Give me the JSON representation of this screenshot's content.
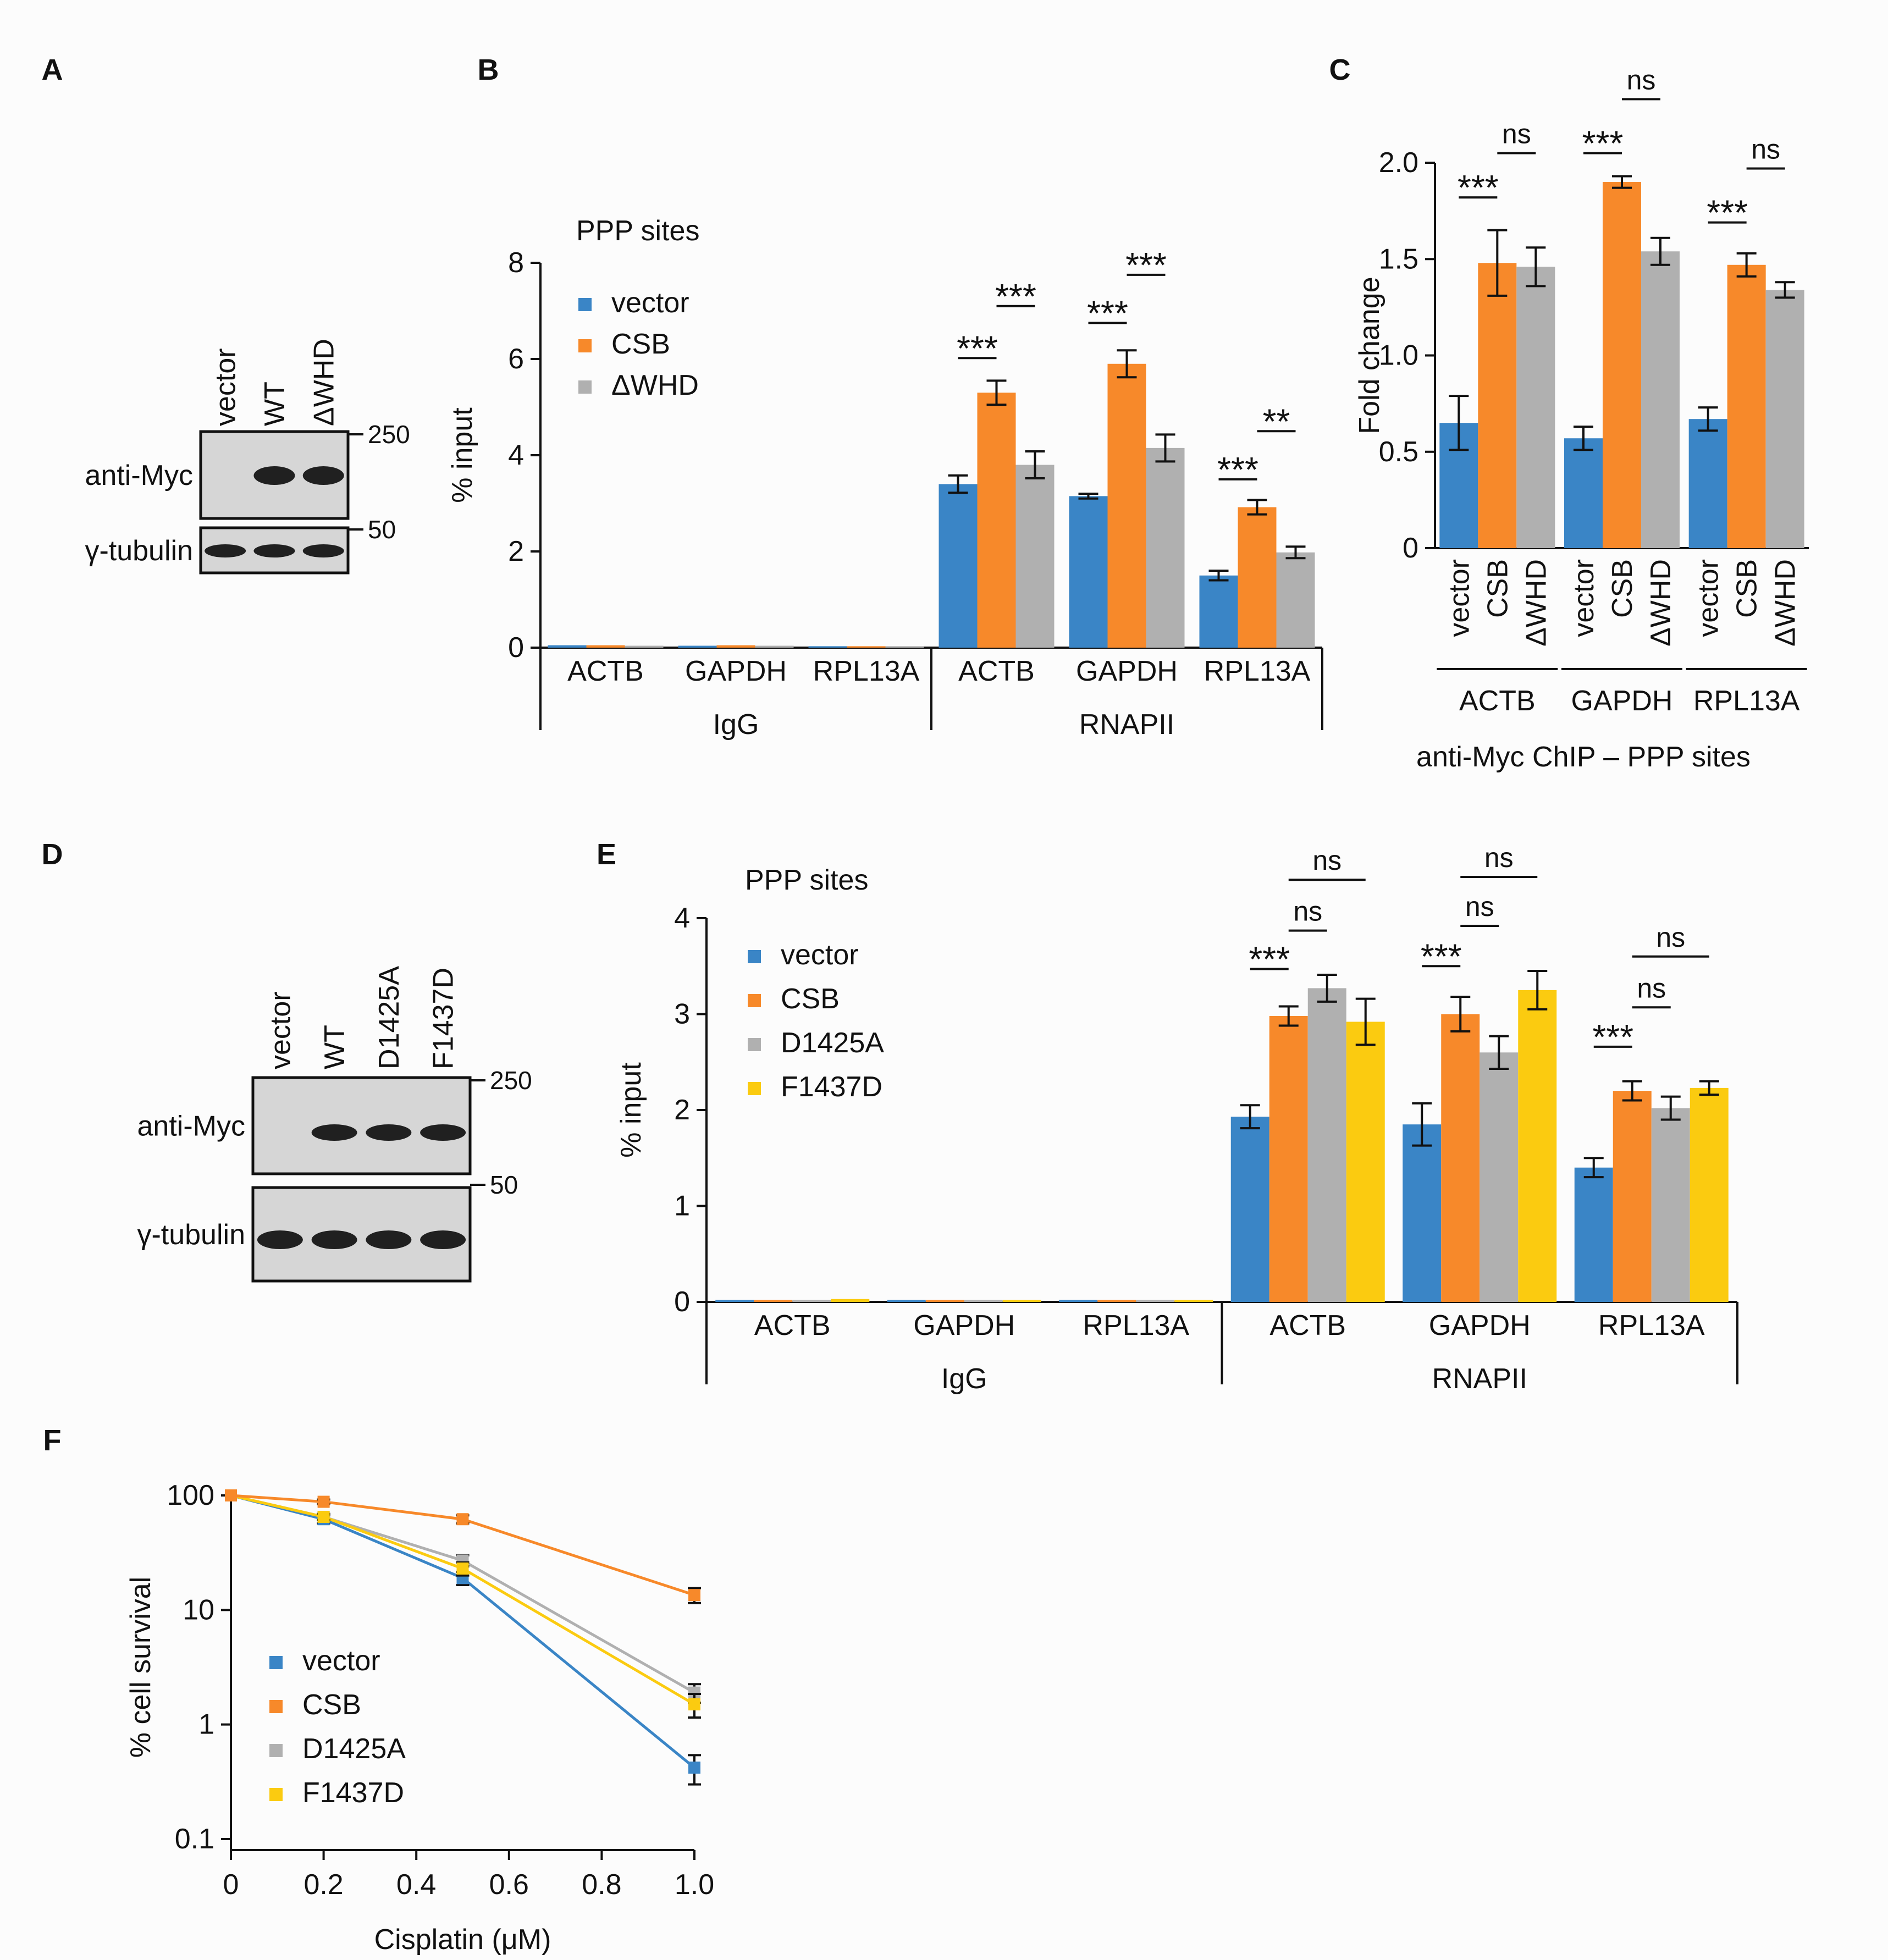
{
  "colors": {
    "vector": "#3a85c6",
    "CSB": "#f7892a",
    "dWHD": "#b0b0b0",
    "D1425A": "#b0b0b0",
    "F1437D": "#fbcb10",
    "blot_bg": "#d6d6d6",
    "band": "#202020"
  },
  "panels": {
    "A": {
      "letter": "A",
      "lanes": [
        "vector",
        "WT",
        "ΔWHD"
      ],
      "rows": [
        "anti-Myc",
        "γ-tubulin"
      ],
      "markers": [
        "250",
        "50"
      ]
    },
    "D": {
      "letter": "D",
      "lanes": [
        "vector",
        "WT",
        "D1425A",
        "F1437D"
      ],
      "rows": [
        "anti-Myc",
        "γ-tubulin"
      ],
      "markers": [
        "250",
        "50"
      ]
    }
  },
  "chart_data": [
    {
      "id": "B",
      "letter": "B",
      "type": "bar",
      "title": "PPP sites",
      "ylabel": "% input",
      "xlabel": "",
      "ylim": [
        0,
        8
      ],
      "yticks": [
        "0",
        "2",
        "4",
        "6",
        "8"
      ],
      "ytick_values": [
        0,
        2,
        4,
        6,
        8
      ],
      "groups": [
        {
          "label": "IgG",
          "categories": [
            "ACTB",
            "GAPDH",
            "RPL13A"
          ]
        },
        {
          "label": "RNAPII",
          "categories": [
            "ACTB",
            "GAPDH",
            "RPL13A"
          ]
        }
      ],
      "series": [
        {
          "name": "vector",
          "values": [
            0.05,
            0.04,
            0.03,
            3.4,
            3.15,
            1.5
          ],
          "errors": [
            0.02,
            0.02,
            0.02,
            0.18,
            0.05,
            0.1
          ]
        },
        {
          "name": "CSB",
          "values": [
            0.05,
            0.05,
            0.03,
            5.3,
            5.9,
            2.92
          ],
          "errors": [
            0.02,
            0.02,
            0.02,
            0.25,
            0.28,
            0.15
          ]
        },
        {
          "name": "ΔWHD",
          "values": [
            0.04,
            0.04,
            0.03,
            3.8,
            4.15,
            1.98
          ],
          "errors": [
            0.02,
            0.02,
            0.02,
            0.28,
            0.28,
            0.12
          ]
        }
      ],
      "annotations": [
        {
          "text": "***",
          "cat": 3,
          "from": 0,
          "to": 1,
          "y": 6.02
        },
        {
          "text": "***",
          "cat": 3,
          "from": 1,
          "to": 2,
          "y": 7.1
        },
        {
          "text": "***",
          "cat": 4,
          "from": 0,
          "to": 1,
          "y": 6.75
        },
        {
          "text": "***",
          "cat": 4,
          "from": 1,
          "to": 2,
          "y": 7.75
        },
        {
          "text": "***",
          "cat": 5,
          "from": 0,
          "to": 1,
          "y": 3.5
        },
        {
          "text": "**",
          "cat": 5,
          "from": 1,
          "to": 2,
          "y": 4.5
        }
      ],
      "legend": "top-left"
    },
    {
      "id": "C",
      "letter": "C",
      "type": "bar",
      "title": "",
      "ylabel": "Fold change",
      "xlabel": "anti-Myc ChIP – PPP sites",
      "ylim": [
        0,
        2.0
      ],
      "yticks": [
        "0",
        "0.5",
        "1.0",
        "1.5",
        "2.0"
      ],
      "ytick_values": [
        0,
        0.5,
        1.0,
        1.5,
        2.0
      ],
      "categories": [
        "ACTB",
        "GAPDH",
        "RPL13A"
      ],
      "bar_labels": [
        "vector",
        "CSB",
        "ΔWHD"
      ],
      "series": [
        {
          "name": "vector",
          "values": [
            0.65,
            0.57,
            0.67
          ],
          "errors": [
            0.14,
            0.06,
            0.06
          ]
        },
        {
          "name": "CSB",
          "values": [
            1.48,
            1.9,
            1.47
          ],
          "errors": [
            0.17,
            0.03,
            0.06
          ]
        },
        {
          "name": "ΔWHD",
          "values": [
            1.46,
            1.54,
            1.34
          ],
          "errors": [
            0.1,
            0.07,
            0.04
          ]
        }
      ],
      "annotations": [
        {
          "text": "***",
          "cat": 0,
          "from": 0,
          "to": 1,
          "y": 1.82
        },
        {
          "text": "ns",
          "cat": 0,
          "from": 1,
          "to": 2,
          "y": 2.05
        },
        {
          "text": "***",
          "cat": 1,
          "from": 0,
          "to": 1,
          "y": 2.05
        },
        {
          "text": "ns",
          "cat": 1,
          "from": 1,
          "to": 2,
          "y": 2.33
        },
        {
          "text": "***",
          "cat": 2,
          "from": 0,
          "to": 1,
          "y": 1.69
        },
        {
          "text": "ns",
          "cat": 2,
          "from": 1,
          "to": 2,
          "y": 1.97
        }
      ]
    },
    {
      "id": "E",
      "letter": "E",
      "type": "bar",
      "title": "PPP sites",
      "ylabel": "% input",
      "xlabel": "",
      "ylim": [
        0,
        4
      ],
      "yticks": [
        "0",
        "1",
        "2",
        "3",
        "4"
      ],
      "ytick_values": [
        0,
        1,
        2,
        3,
        4
      ],
      "groups": [
        {
          "label": "IgG",
          "categories": [
            "ACTB",
            "GAPDH",
            "RPL13A"
          ]
        },
        {
          "label": "RNAPII",
          "categories": [
            "ACTB",
            "GAPDH",
            "RPL13A"
          ]
        }
      ],
      "series": [
        {
          "name": "vector",
          "values": [
            0.02,
            0.02,
            0.02,
            1.93,
            1.85,
            1.4
          ],
          "errors": [
            0.01,
            0.01,
            0.01,
            0.12,
            0.22,
            0.1
          ]
        },
        {
          "name": "CSB",
          "values": [
            0.02,
            0.02,
            0.02,
            2.98,
            3.0,
            2.2
          ],
          "errors": [
            0.01,
            0.01,
            0.01,
            0.1,
            0.18,
            0.1
          ]
        },
        {
          "name": "D1425A",
          "values": [
            0.02,
            0.02,
            0.02,
            3.27,
            2.6,
            2.02
          ],
          "errors": [
            0.01,
            0.01,
            0.01,
            0.14,
            0.17,
            0.12
          ]
        },
        {
          "name": "F1437D",
          "values": [
            0.03,
            0.02,
            0.02,
            2.92,
            3.25,
            2.23
          ],
          "errors": [
            0.01,
            0.01,
            0.01,
            0.24,
            0.2,
            0.07
          ]
        }
      ],
      "annotations": [
        {
          "text": "***",
          "cat": 3,
          "from": 0,
          "to": 1,
          "y": 3.47
        },
        {
          "text": "ns",
          "cat": 3,
          "from": 1,
          "to": 2,
          "y": 3.87
        },
        {
          "text": "ns",
          "cat": 3,
          "from": 1,
          "to": 3,
          "y": 4.4
        },
        {
          "text": "***",
          "cat": 4,
          "from": 0,
          "to": 1,
          "y": 3.5
        },
        {
          "text": "ns",
          "cat": 4,
          "from": 1,
          "to": 2,
          "y": 3.92
        },
        {
          "text": "ns",
          "cat": 4,
          "from": 1,
          "to": 3,
          "y": 4.43
        },
        {
          "text": "***",
          "cat": 5,
          "from": 0,
          "to": 1,
          "y": 2.66
        },
        {
          "text": "ns",
          "cat": 5,
          "from": 1,
          "to": 2,
          "y": 3.07
        },
        {
          "text": "ns",
          "cat": 5,
          "from": 1,
          "to": 3,
          "y": 3.6
        }
      ],
      "legend": "top-left"
    },
    {
      "id": "F",
      "letter": "F",
      "type": "line",
      "title": "",
      "ylabel": "% cell survival",
      "xlabel": "Cisplatin (μM)",
      "xlim": [
        0,
        1.0
      ],
      "ylim": [
        0.1,
        100
      ],
      "yscale": "log",
      "xticks": [
        "0",
        "0.2",
        "0.4",
        "0.6",
        "0.8",
        "1.0"
      ],
      "xtick_values": [
        0,
        0.2,
        0.4,
        0.6,
        0.8,
        1.0
      ],
      "yticks": [
        "0.1",
        "1",
        "10",
        "100"
      ],
      "ytick_values": [
        0.1,
        1,
        10,
        100
      ],
      "x": [
        0,
        0.2,
        0.5,
        1.0
      ],
      "series": [
        {
          "name": "vector",
          "values": [
            100,
            62,
            19,
            0.42
          ],
          "errors": [
            0,
            5,
            2.5,
            0.12
          ]
        },
        {
          "name": "CSB",
          "values": [
            100,
            88,
            62,
            13.5
          ],
          "errors": [
            0,
            4,
            5,
            2
          ]
        },
        {
          "name": "D1425A",
          "values": [
            100,
            65,
            27,
            1.9
          ],
          "errors": [
            0,
            4,
            3,
            0.35
          ]
        },
        {
          "name": "F1437D",
          "values": [
            100,
            65,
            23,
            1.5
          ],
          "errors": [
            0,
            4,
            3,
            0.35
          ]
        }
      ],
      "legend": "bottom-left"
    }
  ]
}
